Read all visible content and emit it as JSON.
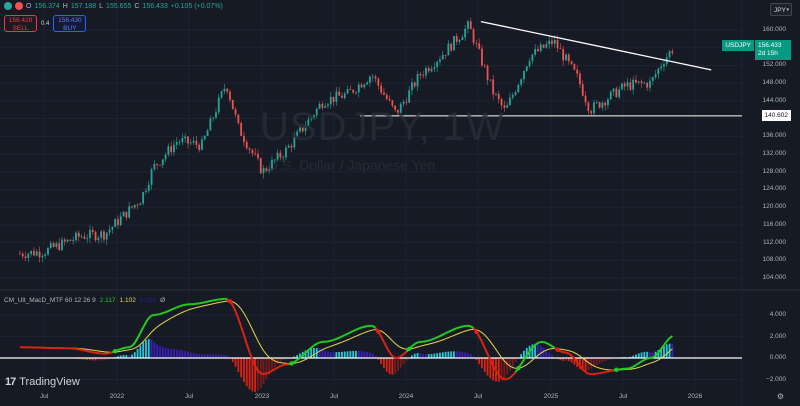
{
  "header": {
    "ohlc": {
      "open_label": "O",
      "open": "156.374",
      "high_label": "H",
      "high": "157.188",
      "low_label": "L",
      "low": "155.655",
      "close_label": "C",
      "close": "156.433",
      "change": "+0.105 (+0.07%)"
    },
    "sell": {
      "price": "156.428",
      "label": "SELL"
    },
    "spread": "0.4",
    "buy": {
      "price": "156.430",
      "label": "BUY"
    },
    "currency_selector": "JPY"
  },
  "watermark": {
    "symbol": "USDJPY, 1W",
    "description": "U.S. Dollar / Japanese Yen"
  },
  "price_tag": {
    "symbol": "USDJPY",
    "value": "156.433",
    "countdown": "2d 15h"
  },
  "hline_tag": "140.602",
  "indicator": {
    "name": "CM_Ult_MacD_MTF 60 12 26 9",
    "macd_value": "2.117",
    "signal_value": "1.102",
    "hist_value": "1.015",
    "extra": "Ø"
  },
  "branding": "TradingView",
  "colors": {
    "background": "#161a25",
    "up": "#26a69a",
    "down": "#ef5350",
    "macd_up": "#22cc22",
    "macd_down": "#dd2211",
    "signal": "#e6d84a",
    "hist_up_strong": "#26c6da",
    "hist_up_weak": "#3a1fb8",
    "hist_down_strong": "#dd2211",
    "hist_down_weak": "#7a1a1a",
    "tag_green": "#089981"
  },
  "chart_data": [
    {
      "type": "candlestick",
      "title": "USDJPY, 1W",
      "subtitle": "U.S. Dollar / Japanese Yen",
      "xlabel": "",
      "ylabel": "",
      "x_ticks": [
        "Jul",
        "2022",
        "Jul",
        "2023",
        "Jul",
        "2024",
        "Jul",
        "2025",
        "Jul",
        "2026"
      ],
      "y_ticks": [
        104,
        108,
        112,
        116,
        120,
        124,
        128,
        132,
        136,
        140,
        144,
        148,
        152,
        156,
        160
      ],
      "ylim": [
        101,
        162
      ],
      "grid": true,
      "approx_weekly_close_path": [
        {
          "date": "2021-05",
          "price": 109.5
        },
        {
          "date": "2021-07",
          "price": 110.0
        },
        {
          "date": "2021-10",
          "price": 113.5
        },
        {
          "date": "2021-12",
          "price": 114.0
        },
        {
          "date": "2022-03",
          "price": 122.0
        },
        {
          "date": "2022-04",
          "price": 129.0
        },
        {
          "date": "2022-06",
          "price": 135.0
        },
        {
          "date": "2022-08",
          "price": 134.0
        },
        {
          "date": "2022-10",
          "price": 148.0
        },
        {
          "date": "2022-11",
          "price": 138.0
        },
        {
          "date": "2023-01",
          "price": 128.0
        },
        {
          "date": "2023-03",
          "price": 133.0
        },
        {
          "date": "2023-06",
          "price": 144.0
        },
        {
          "date": "2023-08",
          "price": 145.5
        },
        {
          "date": "2023-10",
          "price": 150.0
        },
        {
          "date": "2023-12",
          "price": 141.0
        },
        {
          "date": "2024-02",
          "price": 150.0
        },
        {
          "date": "2024-04",
          "price": 155.0
        },
        {
          "date": "2024-06",
          "price": 161.0
        },
        {
          "date": "2024-08",
          "price": 146.0
        },
        {
          "date": "2024-09",
          "price": 141.5
        },
        {
          "date": "2024-11",
          "price": 154.0
        },
        {
          "date": "2025-01",
          "price": 157.5
        },
        {
          "date": "2025-03",
          "price": 149.0
        },
        {
          "date": "2025-04",
          "price": 142.0
        },
        {
          "date": "2025-07",
          "price": 147.5
        },
        {
          "date": "2025-09",
          "price": 148.0
        },
        {
          "date": "2025-10",
          "price": 153.0
        },
        {
          "date": "2025-11",
          "price": 156.4
        }
      ],
      "last": {
        "open": 156.374,
        "high": 157.188,
        "low": 155.655,
        "close": 156.433,
        "change": 0.105,
        "change_pct": 0.07
      },
      "annotations": [
        {
          "type": "trendline",
          "from": {
            "date": "2024-07",
            "price": 161.9
          },
          "to": {
            "date": "2026-01",
            "price": 151.0
          },
          "color": "#ffffff"
        },
        {
          "type": "horizontal_line",
          "price": 140.602,
          "color": "#ffffff"
        }
      ]
    },
    {
      "type": "line+histogram",
      "title": "CM_Ult_MacD_MTF 60 12 26 9",
      "y_ticks": [
        -2,
        0,
        2,
        4
      ],
      "ylim": [
        -3,
        6
      ],
      "series": [
        {
          "name": "MACD",
          "last": 2.117
        },
        {
          "name": "Signal",
          "last": 1.102
        },
        {
          "name": "Histogram",
          "last": 1.015
        }
      ],
      "approx_macd_path": [
        {
          "date": "2021-05",
          "value": 1.0
        },
        {
          "date": "2021-09",
          "value": 0.9
        },
        {
          "date": "2021-12",
          "value": 0.4
        },
        {
          "date": "2022-02",
          "value": 1.0
        },
        {
          "date": "2022-04",
          "value": 4.0
        },
        {
          "date": "2022-07",
          "value": 5.0
        },
        {
          "date": "2022-10",
          "value": 5.5
        },
        {
          "date": "2023-01",
          "value": -1.5
        },
        {
          "date": "2023-03",
          "value": -0.6
        },
        {
          "date": "2023-06",
          "value": 1.5
        },
        {
          "date": "2023-10",
          "value": 3.0
        },
        {
          "date": "2023-12",
          "value": 0.0
        },
        {
          "date": "2024-02",
          "value": 1.5
        },
        {
          "date": "2024-06",
          "value": 3.0
        },
        {
          "date": "2024-09",
          "value": -2.0
        },
        {
          "date": "2024-12",
          "value": 1.5
        },
        {
          "date": "2025-02",
          "value": 0.5
        },
        {
          "date": "2025-04",
          "value": -1.5
        },
        {
          "date": "2025-07",
          "value": -1.0
        },
        {
          "date": "2025-09",
          "value": 0.0
        },
        {
          "date": "2025-11",
          "value": 2.117
        }
      ]
    }
  ]
}
